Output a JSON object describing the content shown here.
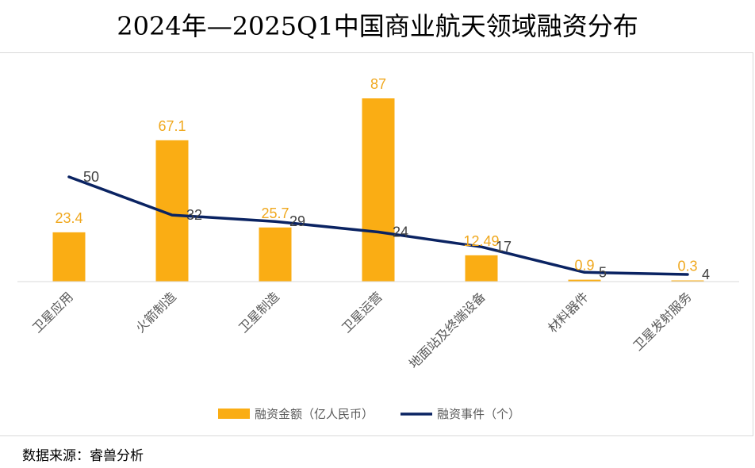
{
  "title": "2024年—2025Q1中国商业航天领域融资分布",
  "source": "数据来源：睿兽分析",
  "colors": {
    "bar": "#FAAD14",
    "line": "#0A2362",
    "bar_label": "#F0A81E",
    "line_label": "#404040",
    "axis": "#d9d9d9",
    "tick": "#595959"
  },
  "chart_data": {
    "type": "bar",
    "categories": [
      "卫星应用",
      "火箭制造",
      "卫星制造",
      "卫星运营",
      "地面站及终端设备",
      "材料器件",
      "卫星发射服务"
    ],
    "series": [
      {
        "name": "融资金额（亿人民币）",
        "type": "bar",
        "values": [
          23.4,
          67.1,
          25.7,
          87,
          12.49,
          0.9,
          0.3
        ]
      },
      {
        "name": "融资事件（个）",
        "type": "line",
        "values": [
          50,
          32,
          29,
          24,
          17,
          5,
          4
        ]
      }
    ],
    "bar_labels": [
      "23.4",
      "67.1",
      "25.7",
      "87",
      "12.49",
      "0.9",
      "0.3"
    ],
    "line_labels": [
      "50",
      "32",
      "29",
      "24",
      "17",
      "5",
      "4"
    ],
    "ylim": [
      0,
      87
    ],
    "grid": false,
    "legend": "bottom"
  }
}
